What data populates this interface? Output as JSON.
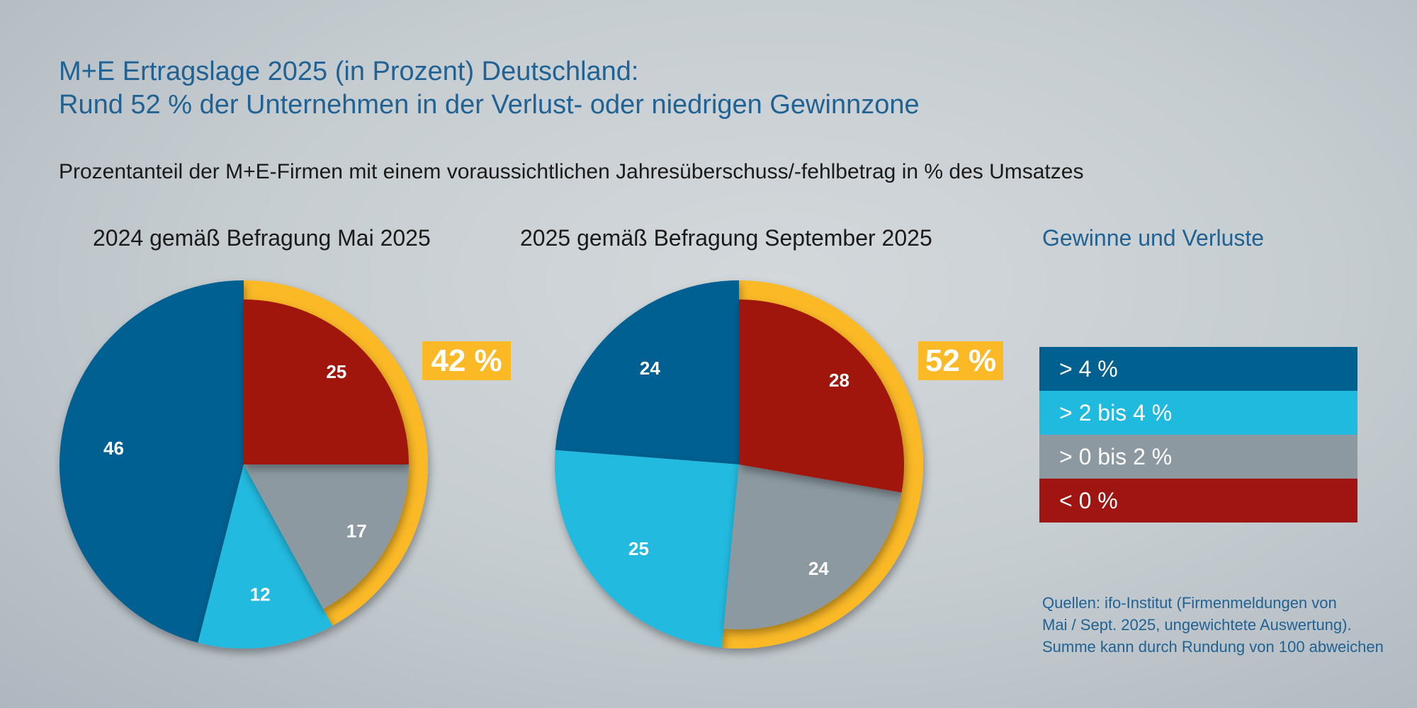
{
  "title_line1": "M+E Ertragslage 2025 (in Prozent) Deutschland:",
  "title_line2": "Rund 52 % der Unternehmen in der Verlust- oder niedrigen Gewinnzone",
  "subtitle": "Prozentanteil der M+E-Firmen mit einem voraussichtlichen Jahresüberschuss/-fehlbetrag in % des Umsatzes",
  "legend_title": "Gewinne und Verluste",
  "source": [
    "Quellen: ifo-Institut (Firmenmeldungen von",
    "Mai / Sept. 2025, ungewichtete Auswertung).",
    "Summe kann durch Rundung von 100 abweichen"
  ],
  "colors": {
    "<0": "#a01511",
    ">0-2": "#8c99a1",
    ">2-4": "#21badf",
    ">4": "#006191",
    "highlight": "#fbb925"
  },
  "chart_data": [
    {
      "type": "pie",
      "title": "2024 gemäß Befragung Mai 2025",
      "categories": [
        "< 0 %",
        "> 0 bis 2 %",
        "> 2 bis 4 %",
        "> 4 %"
      ],
      "values": [
        25,
        17,
        12,
        46
      ],
      "highlight_label": "42 %"
    },
    {
      "type": "pie",
      "title": "2025 gemäß Befragung September 2025",
      "categories": [
        "< 0 %",
        "> 0 bis 2 %",
        "> 2 bis 4 %",
        "> 4 %"
      ],
      "values": [
        28,
        24,
        25,
        24
      ],
      "highlight_label": "52 %"
    }
  ],
  "legend": [
    {
      "label": "> 4 %",
      "color": "#006191"
    },
    {
      "label": "> 2 bis 4 %",
      "color": "#21badf"
    },
    {
      "label": "> 0 bis 2 %",
      "color": "#8c99a1"
    },
    {
      "label": "< 0 %",
      "color": "#a01511"
    }
  ]
}
